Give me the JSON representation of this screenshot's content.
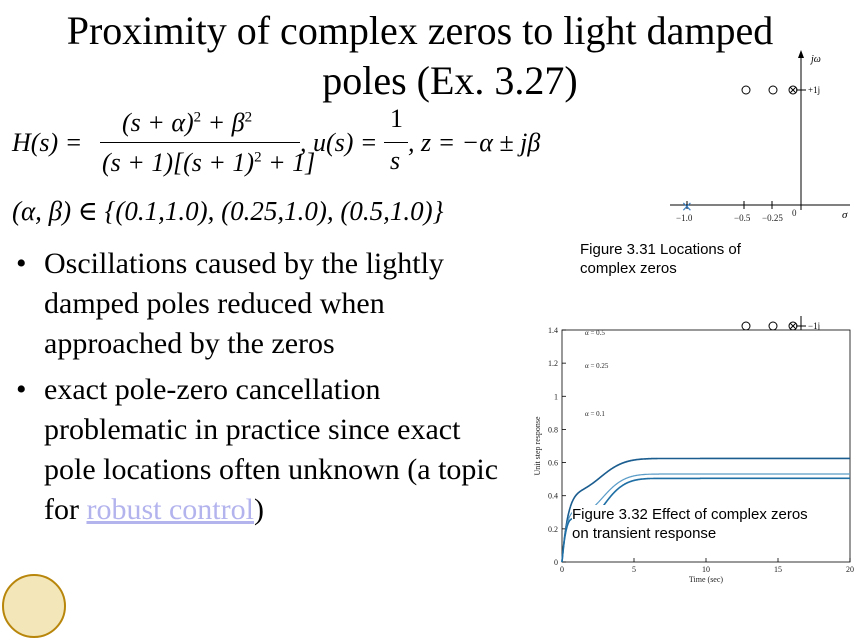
{
  "slide": {
    "title_line1": "Proximity of complex zeros to light damped",
    "title_line2": "poles (Ex. 3.27)",
    "formula": {
      "H_lhs": "H(s) =",
      "num": "(s + α)",
      "num_exp": "2",
      "num_tail": " + β",
      "num_tail_exp": "2",
      "den": "(s + 1)[(s + 1)",
      "den_exp": "2",
      "den_tail": " + 1]",
      "mid": ", u(s) =",
      "u_num": "1",
      "u_den": "s",
      "z_part": ", z = −α ± jβ"
    },
    "params": "(α, β) ∈ {(0.1,1.0), (0.25,1.0), (0.5,1.0)}",
    "bullets": [
      {
        "text": "Oscillations caused by the lightly damped poles reduced when approached by the zeros"
      },
      {
        "text_before": "exact pole-zero cancellation problematic in practice since exact pole locations often unknown (a topic for ",
        "link": "robust control",
        "text_after": ")"
      }
    ],
    "bullet_symbol": "•"
  },
  "figure_3_31": {
    "caption": "Figure 3.31   Locations of complex zeros",
    "axis_labels": {
      "imag": "jω",
      "real": "σ",
      "plus_j": "+1j",
      "minus_j": "−1j"
    },
    "ticks": [
      "−1.0",
      "−0.5",
      "−0.25",
      "0"
    ],
    "pole_marker": "×",
    "zero_marker": "○"
  },
  "figure_3_32": {
    "caption": "Figure 3.32   Effect of complex zeros on transient response",
    "chart_data": {
      "type": "line",
      "title": "",
      "xlabel": "Time (sec)",
      "ylabel": "Unit step response",
      "xlim": [
        0,
        20
      ],
      "ylim": [
        0,
        1.4
      ],
      "x_ticks": [
        "0",
        "5",
        "10",
        "15",
        "20"
      ],
      "y_ticks": [
        "0",
        "0.2",
        "0.4",
        "0.6",
        "0.8",
        "1",
        "1.2",
        "1.4"
      ],
      "series_labels": [
        "α = 0.5",
        "α = 0.25",
        "α = 0.1"
      ],
      "colors": {
        "alpha_0_5": "#1b5d8f",
        "alpha_0_25": "#5a9cc8",
        "alpha_0_1": "#1f6fa5"
      }
    }
  }
}
